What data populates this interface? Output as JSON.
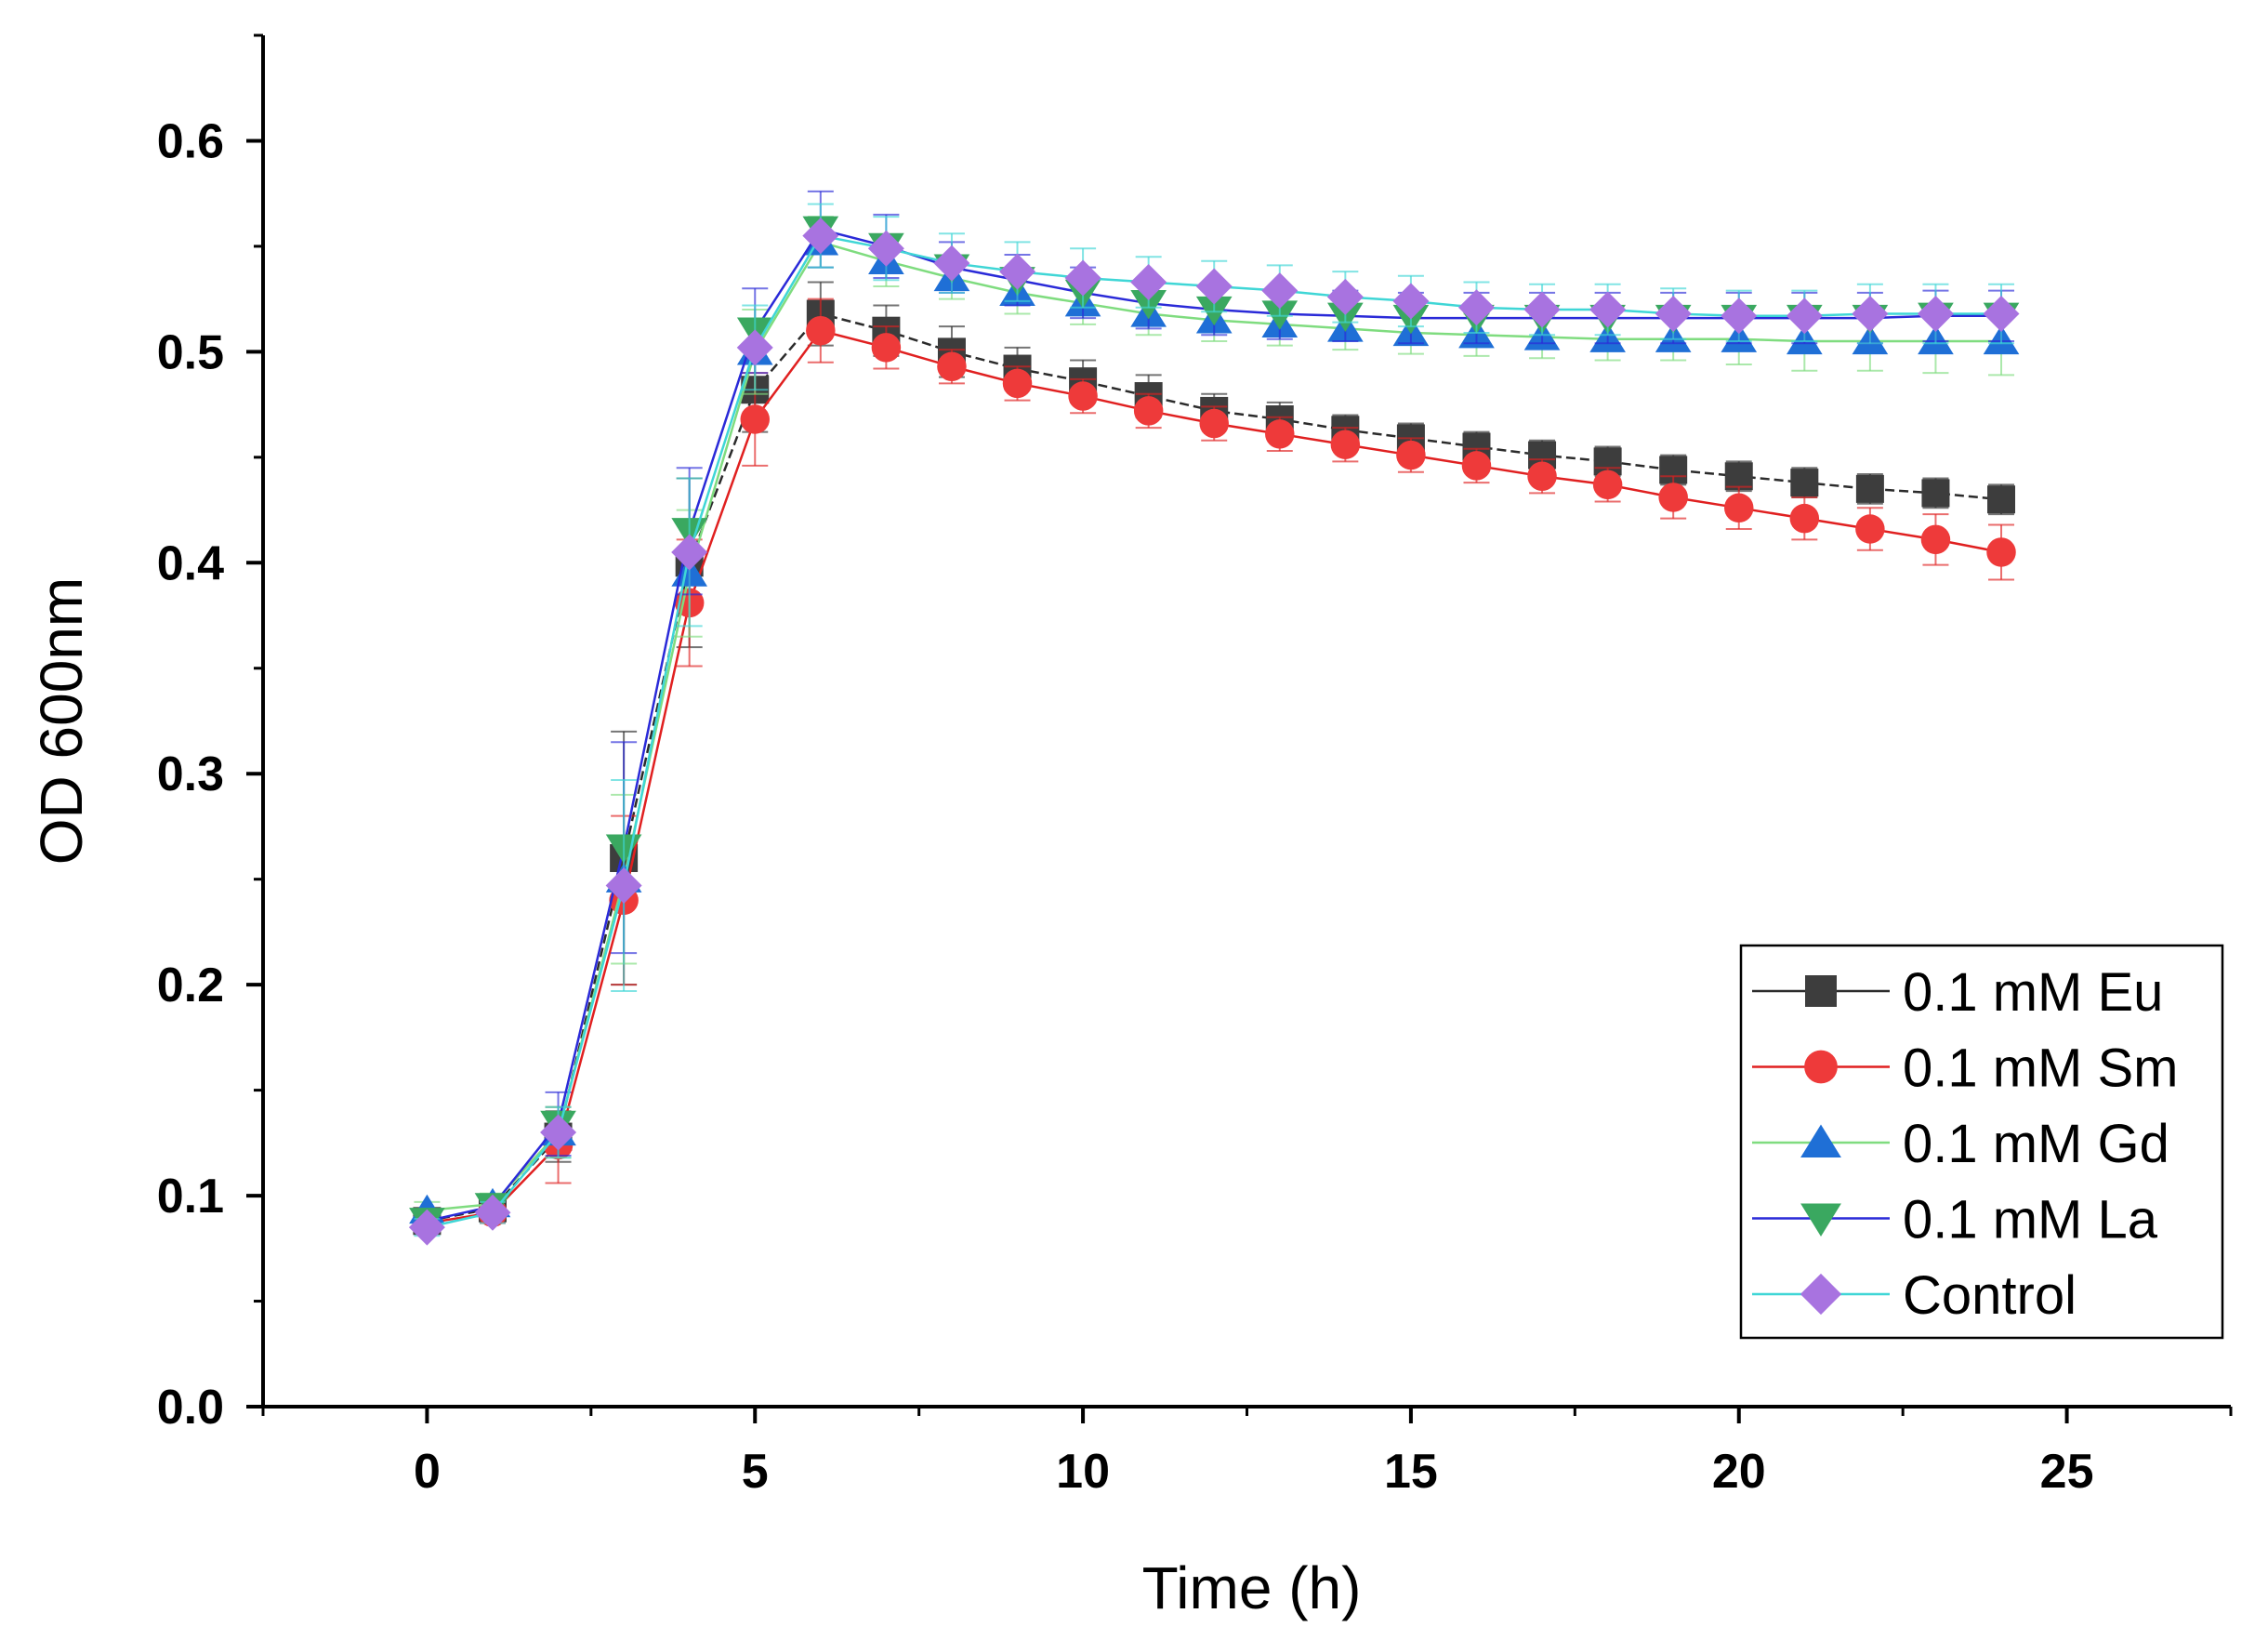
{
  "chart_data": {
    "type": "line",
    "title": "",
    "xlabel": "Time (h)",
    "ylabel": "OD 600nm",
    "xlim": [
      -2.5,
      27.5
    ],
    "ylim": [
      0.0,
      0.65
    ],
    "x_ticks": [
      0,
      5,
      10,
      15,
      20,
      25
    ],
    "x_tick_labels": [
      "0",
      "5",
      "10",
      "15",
      "20",
      "25"
    ],
    "y_ticks": [
      0.0,
      0.1,
      0.2,
      0.3,
      0.4,
      0.5,
      0.6
    ],
    "y_tick_labels": [
      "0.0",
      "0.1",
      "0.2",
      "0.3",
      "0.4",
      "0.5",
      "0.6"
    ],
    "grid": false,
    "legend_position": "bottom-right",
    "x": [
      0,
      1,
      2,
      3,
      4,
      5,
      6,
      7,
      8,
      9,
      10,
      11,
      12,
      13,
      14,
      15,
      16,
      17,
      18,
      19,
      20,
      21,
      22,
      23,
      24
    ],
    "series": [
      {
        "name": "0.1 mM Eu",
        "marker": "square",
        "marker_color": "#3d3d3d",
        "line_color": "#2b2b2b",
        "line_style": "dashed-light",
        "values": [
          0.088,
          0.094,
          0.128,
          0.26,
          0.4,
          0.482,
          0.518,
          0.51,
          0.5,
          0.492,
          0.486,
          0.479,
          0.472,
          0.468,
          0.463,
          0.459,
          0.455,
          0.451,
          0.448,
          0.444,
          0.441,
          0.438,
          0.435,
          0.433,
          0.43
        ],
        "errors": [
          0.004,
          0.005,
          0.012,
          0.06,
          0.04,
          0.02,
          0.015,
          0.012,
          0.012,
          0.01,
          0.01,
          0.01,
          0.008,
          0.008,
          0.007,
          0.007,
          0.007,
          0.007,
          0.007,
          0.007,
          0.007,
          0.007,
          0.007,
          0.007,
          0.007
        ]
      },
      {
        "name": "0.1 mM Sm",
        "marker": "circle",
        "marker_color": "#ee3a3a",
        "line_color": "#e02020",
        "line_style": "solid",
        "values": [
          0.087,
          0.092,
          0.124,
          0.24,
          0.381,
          0.468,
          0.51,
          0.502,
          0.493,
          0.485,
          0.479,
          0.472,
          0.466,
          0.461,
          0.456,
          0.451,
          0.446,
          0.441,
          0.437,
          0.431,
          0.426,
          0.421,
          0.416,
          0.411,
          0.405
        ],
        "errors": [
          0.004,
          0.005,
          0.018,
          0.04,
          0.03,
          0.022,
          0.015,
          0.01,
          0.008,
          0.008,
          0.008,
          0.008,
          0.008,
          0.008,
          0.008,
          0.008,
          0.008,
          0.008,
          0.008,
          0.01,
          0.01,
          0.01,
          0.01,
          0.012,
          0.013
        ]
      },
      {
        "name": "0.1 mM Gd",
        "marker": "triangle-up",
        "marker_color": "#1f6fd6",
        "line_color": "#7fdc7f",
        "line_style": "solid",
        "values": [
          0.093,
          0.096,
          0.13,
          0.25,
          0.395,
          0.5,
          0.552,
          0.543,
          0.535,
          0.528,
          0.523,
          0.518,
          0.515,
          0.513,
          0.511,
          0.509,
          0.508,
          0.507,
          0.506,
          0.506,
          0.506,
          0.505,
          0.505,
          0.505,
          0.505
        ],
        "errors": [
          0.004,
          0.005,
          0.012,
          0.04,
          0.03,
          0.02,
          0.012,
          0.012,
          0.01,
          0.01,
          0.01,
          0.01,
          0.01,
          0.01,
          0.01,
          0.01,
          0.01,
          0.01,
          0.01,
          0.01,
          0.012,
          0.014,
          0.014,
          0.015,
          0.016
        ]
      },
      {
        "name": "0.1 mM La",
        "marker": "triangle-down",
        "marker_color": "#3aa860",
        "line_color": "#2a2ad8",
        "line_style": "solid",
        "values": [
          0.088,
          0.095,
          0.134,
          0.265,
          0.415,
          0.51,
          0.558,
          0.55,
          0.54,
          0.534,
          0.528,
          0.523,
          0.52,
          0.518,
          0.517,
          0.516,
          0.516,
          0.516,
          0.516,
          0.516,
          0.516,
          0.516,
          0.516,
          0.517,
          0.517
        ],
        "errors": [
          0.004,
          0.005,
          0.015,
          0.05,
          0.03,
          0.02,
          0.018,
          0.015,
          0.012,
          0.012,
          0.012,
          0.012,
          0.012,
          0.012,
          0.012,
          0.012,
          0.012,
          0.012,
          0.012,
          0.012,
          0.012,
          0.012,
          0.012,
          0.012,
          0.012
        ]
      },
      {
        "name": "Control",
        "marker": "diamond",
        "marker_color": "#a873e0",
        "line_color": "#3fd6d6",
        "line_style": "solid",
        "values": [
          0.085,
          0.092,
          0.13,
          0.247,
          0.405,
          0.502,
          0.555,
          0.549,
          0.542,
          0.538,
          0.535,
          0.533,
          0.531,
          0.529,
          0.526,
          0.524,
          0.521,
          0.52,
          0.52,
          0.518,
          0.517,
          0.517,
          0.518,
          0.518,
          0.518
        ],
        "errors": [
          0.004,
          0.005,
          0.012,
          0.05,
          0.035,
          0.02,
          0.015,
          0.015,
          0.014,
          0.014,
          0.014,
          0.012,
          0.012,
          0.012,
          0.012,
          0.012,
          0.012,
          0.012,
          0.012,
          0.012,
          0.012,
          0.012,
          0.014,
          0.014,
          0.014
        ]
      }
    ]
  }
}
